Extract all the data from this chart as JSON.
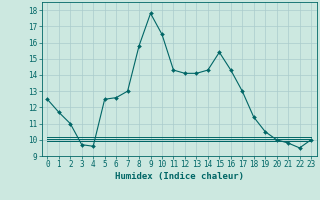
{
  "title": "",
  "xlabel": "Humidex (Indice chaleur)",
  "background_color": "#cce8e0",
  "grid_color": "#aacccc",
  "line_color": "#006666",
  "xlim": [
    -0.5,
    23.5
  ],
  "ylim": [
    9,
    18.5
  ],
  "yticks": [
    9,
    10,
    11,
    12,
    13,
    14,
    15,
    16,
    17,
    18
  ],
  "xticks": [
    0,
    1,
    2,
    3,
    4,
    5,
    6,
    7,
    8,
    9,
    10,
    11,
    12,
    13,
    14,
    15,
    16,
    17,
    18,
    19,
    20,
    21,
    22,
    23
  ],
  "main_series": [
    12.5,
    11.7,
    11.0,
    9.7,
    9.6,
    12.5,
    12.6,
    13.0,
    15.8,
    17.8,
    16.5,
    14.3,
    14.1,
    14.1,
    14.3,
    15.4,
    14.3,
    13.0,
    11.4,
    10.5,
    10.0,
    9.8,
    9.5,
    10.0
  ],
  "flat_series1": [
    10.2,
    10.2,
    10.2,
    10.2,
    10.2,
    10.2,
    10.2,
    10.2,
    10.2,
    10.2,
    10.2,
    10.2,
    10.2,
    10.2,
    10.2,
    10.2,
    10.2,
    10.2,
    10.2,
    10.2,
    10.2,
    10.2,
    10.2,
    10.2
  ],
  "flat_series2": [
    10.05,
    10.05,
    10.05,
    10.05,
    10.05,
    10.05,
    10.05,
    10.05,
    10.05,
    10.05,
    10.05,
    10.05,
    10.05,
    10.05,
    10.05,
    10.05,
    10.05,
    10.05,
    10.05,
    10.05,
    10.05,
    10.05,
    10.05,
    10.05
  ],
  "flat_series3": [
    9.95,
    9.95,
    9.95,
    9.95,
    9.95,
    9.95,
    9.95,
    9.95,
    9.95,
    9.95,
    9.95,
    9.95,
    9.95,
    9.95,
    9.95,
    9.95,
    9.95,
    9.95,
    9.95,
    9.95,
    9.95,
    9.95,
    9.95,
    9.95
  ],
  "flat_series4": [
    9.9,
    9.9,
    9.9,
    9.9,
    9.9,
    9.9,
    9.9,
    9.9,
    9.9,
    9.9,
    9.9,
    9.9,
    9.9,
    9.9,
    9.9,
    9.9,
    9.9,
    9.9,
    9.9,
    9.9,
    9.9,
    9.9,
    9.9,
    9.9
  ],
  "label_fontsize": 6.5,
  "tick_fontsize": 5.5
}
